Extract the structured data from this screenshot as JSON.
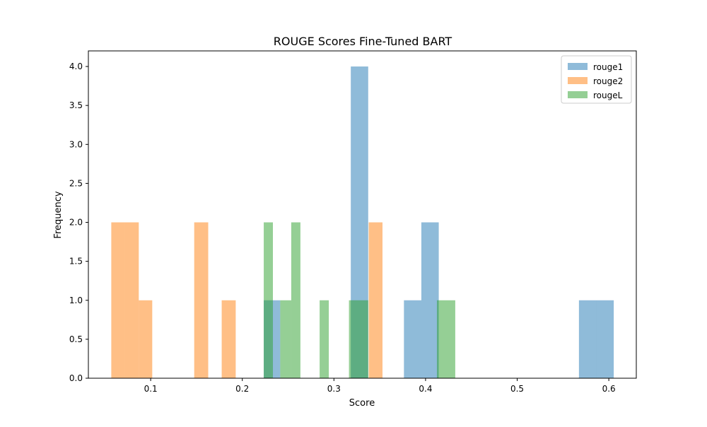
{
  "chart_data": {
    "type": "bar",
    "title": "ROUGE Scores Fine-Tuned BART",
    "xlabel": "Score",
    "ylabel": "Frequency",
    "xlim": [
      0.032,
      0.63
    ],
    "ylim": [
      0,
      4.2
    ],
    "xticks": [
      0.1,
      0.2,
      0.3,
      0.4,
      0.5,
      0.6
    ],
    "xtick_labels": [
      "0.1",
      "0.2",
      "0.3",
      "0.4",
      "0.5",
      "0.6"
    ],
    "yticks": [
      0.0,
      0.5,
      1.0,
      1.5,
      2.0,
      2.5,
      3.0,
      3.5,
      4.0
    ],
    "ytick_labels": [
      "0.0",
      "0.5",
      "1.0",
      "1.5",
      "2.0",
      "2.5",
      "3.0",
      "3.5",
      "4.0"
    ],
    "grid": false,
    "legend": "top-right",
    "series": [
      {
        "name": "rouge1",
        "color": "#1f77b4",
        "opacity": 0.5,
        "bins": [
          {
            "x0": 0.2234,
            "x1": 0.2324,
            "count": 1
          },
          {
            "x0": 0.2324,
            "x1": 0.2414,
            "count": 1
          },
          {
            "x0": 0.3184,
            "x1": 0.3374,
            "count": 4
          },
          {
            "x0": 0.3764,
            "x1": 0.3954,
            "count": 1
          },
          {
            "x0": 0.3954,
            "x1": 0.4144,
            "count": 2
          },
          {
            "x0": 0.5674,
            "x1": 0.5864,
            "count": 1
          },
          {
            "x0": 0.5864,
            "x1": 0.6054,
            "count": 1
          }
        ]
      },
      {
        "name": "rouge2",
        "color": "#ff7f0e",
        "opacity": 0.5,
        "bins": [
          {
            "x0": 0.057,
            "x1": 0.0717,
            "count": 2
          },
          {
            "x0": 0.0717,
            "x1": 0.087,
            "count": 2
          },
          {
            "x0": 0.087,
            "x1": 0.1017,
            "count": 1
          },
          {
            "x0": 0.1475,
            "x1": 0.1628,
            "count": 2
          },
          {
            "x0": 0.1775,
            "x1": 0.1928,
            "count": 1
          },
          {
            "x0": 0.338,
            "x1": 0.353,
            "count": 2
          }
        ]
      },
      {
        "name": "rougeL",
        "color": "#2ca02c",
        "opacity": 0.5,
        "bins": [
          {
            "x0": 0.2234,
            "x1": 0.2334,
            "count": 2
          },
          {
            "x0": 0.2414,
            "x1": 0.2534,
            "count": 1
          },
          {
            "x0": 0.2534,
            "x1": 0.2634,
            "count": 2
          },
          {
            "x0": 0.2844,
            "x1": 0.2944,
            "count": 1
          },
          {
            "x0": 0.3164,
            "x1": 0.3374,
            "count": 1
          },
          {
            "x0": 0.4124,
            "x1": 0.4324,
            "count": 1
          }
        ]
      }
    ]
  }
}
